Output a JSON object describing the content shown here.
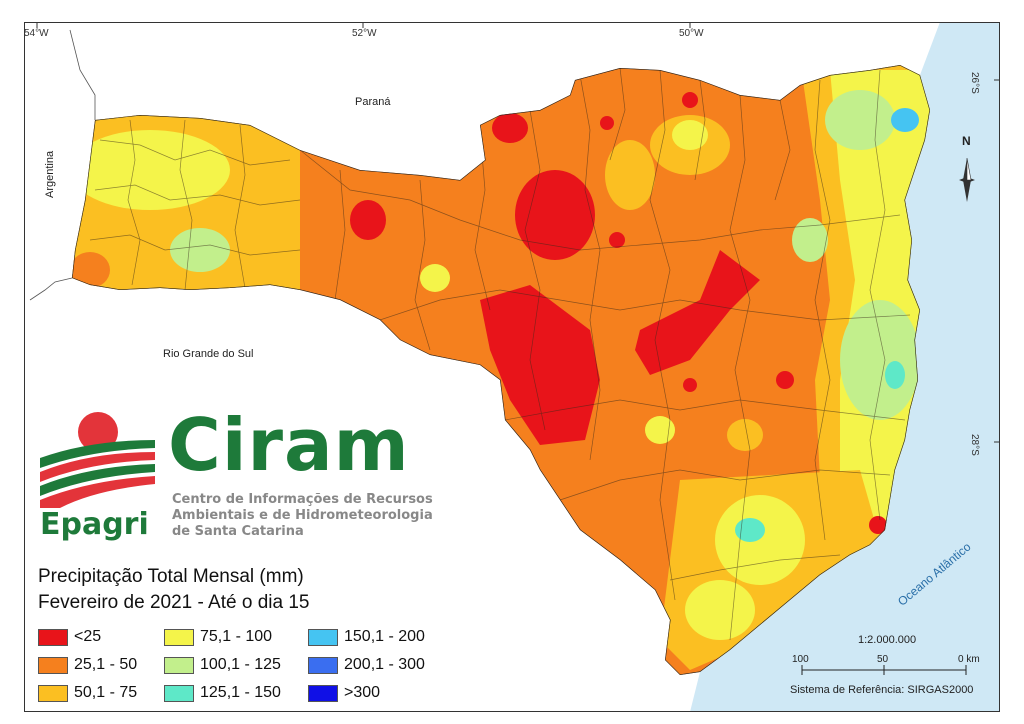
{
  "coords": {
    "top": [
      "54°W",
      "52°W",
      "50°W"
    ],
    "right": [
      "26°S",
      "28°S"
    ]
  },
  "regions": {
    "north": "Paraná",
    "south": "Rio Grande do Sul",
    "west": "Argentina",
    "ocean": "Oceano Atlântico"
  },
  "north_arrow": "N",
  "logo": {
    "brand": "Ciram",
    "org": "Epagri",
    "subtitle": [
      "Centro de Informações de Recursos",
      "Ambientais e de Hidrometeorologia",
      "de Santa Catarina"
    ]
  },
  "legend": {
    "title": "Precipitação Total Mensal (mm)",
    "subtitle": "Fevereiro de 2021 - Até o dia 15",
    "items": [
      {
        "label": "<25",
        "color": "#e8141a"
      },
      {
        "label": "25,1 - 50",
        "color": "#f5801e"
      },
      {
        "label": "50,1 - 75",
        "color": "#fbbf22"
      },
      {
        "label": "75,1 - 100",
        "color": "#f4f44a"
      },
      {
        "label": "100,1 - 125",
        "color": "#c2ef8c"
      },
      {
        "label": "125,1 - 150",
        "color": "#5ee8c8"
      },
      {
        "label": "150,1 - 200",
        "color": "#45c4f2"
      },
      {
        "label": "200,1 - 300",
        "color": "#3a6ef0"
      },
      {
        "label": ">300",
        "color": "#1010e6"
      }
    ]
  },
  "scale": {
    "ratio": "1:2.000.000",
    "ticks": [
      "100",
      "50",
      "0 km"
    ]
  },
  "reference": "Sistema de Referência: SIRGAS2000"
}
